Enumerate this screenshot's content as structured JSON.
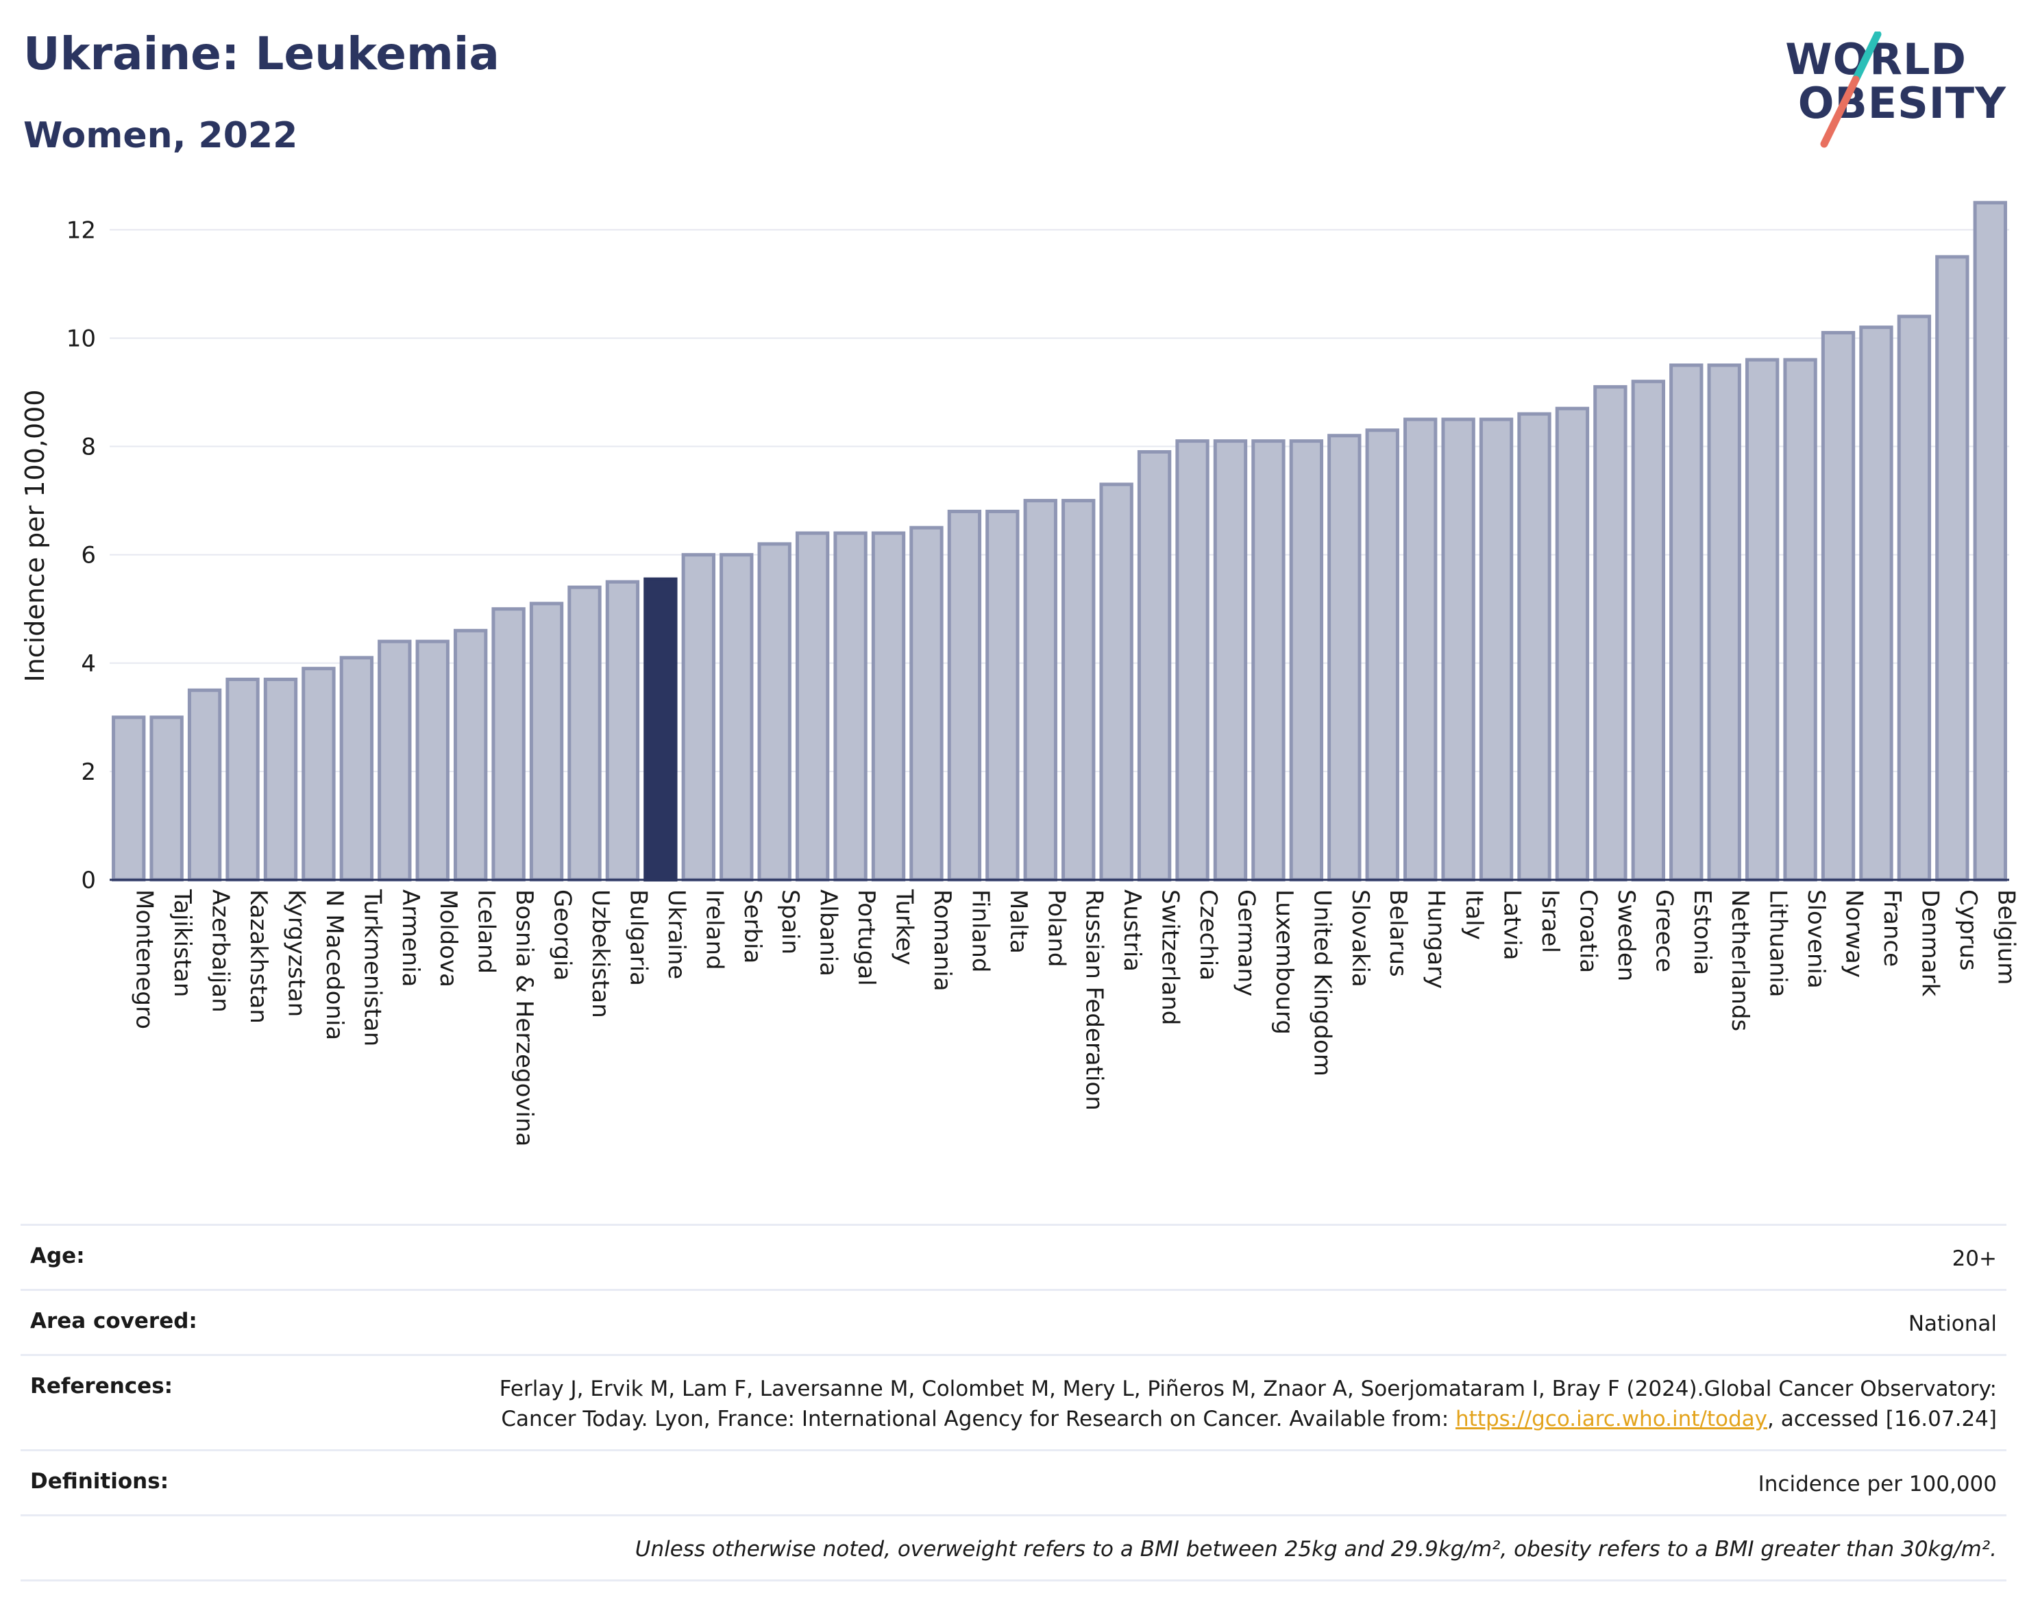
{
  "header": {
    "title": "Ukraine: Leukemia",
    "subtitle": "Women, 2022"
  },
  "logo": {
    "line1": "WORLD",
    "line2": "OBESITY",
    "slash_colors": [
      "#2bbfb8",
      "#e8705f"
    ]
  },
  "colors": {
    "bar": "#babfd0",
    "bar_border": "#8f96b4",
    "highlight": "#2b3560",
    "grid": "#e6e8f0",
    "axis_text": "#1a1a1a"
  },
  "chart_data": {
    "type": "bar",
    "title": "",
    "xlabel": "",
    "ylabel": "Incidence per 100,000",
    "ylim": [
      0,
      12.7
    ],
    "yticks": [
      0,
      2,
      4,
      6,
      8,
      10,
      12
    ],
    "grid": true,
    "highlight_category": "Ukraine",
    "categories": [
      "Montenegro",
      "Tajikistan",
      "Azerbaijan",
      "Kazakhstan",
      "Kyrgyzstan",
      "N Macedonia",
      "Turkmenistan",
      "Armenia",
      "Moldova",
      "Iceland",
      "Bosnia & Herzegovina",
      "Georgia",
      "Uzbekistan",
      "Bulgaria",
      "Ukraine",
      "Ireland",
      "Serbia",
      "Spain",
      "Albania",
      "Portugal",
      "Turkey",
      "Romania",
      "Finland",
      "Malta",
      "Poland",
      "Russian Federation",
      "Austria",
      "Switzerland",
      "Czechia",
      "Germany",
      "Luxembourg",
      "United Kingdom",
      "Slovakia",
      "Belarus",
      "Hungary",
      "Italy",
      "Latvia",
      "Israel",
      "Croatia",
      "Sweden",
      "Greece",
      "Estonia",
      "Netherlands",
      "Lithuania",
      "Slovenia",
      "Norway",
      "France",
      "Denmark",
      "Cyprus",
      "Belgium"
    ],
    "values": [
      3.0,
      3.0,
      3.5,
      3.7,
      3.7,
      3.9,
      4.1,
      4.4,
      4.4,
      4.6,
      5.0,
      5.1,
      5.4,
      5.5,
      5.55,
      6.0,
      6.0,
      6.2,
      6.4,
      6.4,
      6.4,
      6.5,
      6.8,
      6.8,
      7.0,
      7.0,
      7.3,
      7.9,
      8.1,
      8.1,
      8.1,
      8.1,
      8.2,
      8.3,
      8.5,
      8.5,
      8.5,
      8.6,
      8.7,
      9.1,
      9.2,
      9.5,
      9.5,
      9.6,
      9.6,
      10.1,
      10.2,
      10.4,
      11.5,
      12.5
    ]
  },
  "info": {
    "age_label": "Age:",
    "age_value": "20+",
    "area_label": "Area covered:",
    "area_value": "National",
    "references_label": "References:",
    "references_text": "Ferlay J, Ervik M, Lam F, Laversanne M, Colombet M, Mery L, Piñeros M, Znaor A, Soerjomataram I, Bray F (2024).Global Cancer Observatory: Cancer Today. Lyon, France: International Agency for Research on Cancer. Available from:",
    "references_link": "https://gco.iarc.who.int/today",
    "references_suffix": ", accessed [16.07.24]",
    "definitions_label": "Definitions:",
    "definitions_value": "Incidence per 100,000",
    "note": "Unless otherwise noted, overweight refers to a BMI between 25kg and 29.9kg/m², obesity refers to a BMI greater than 30kg/m²."
  }
}
